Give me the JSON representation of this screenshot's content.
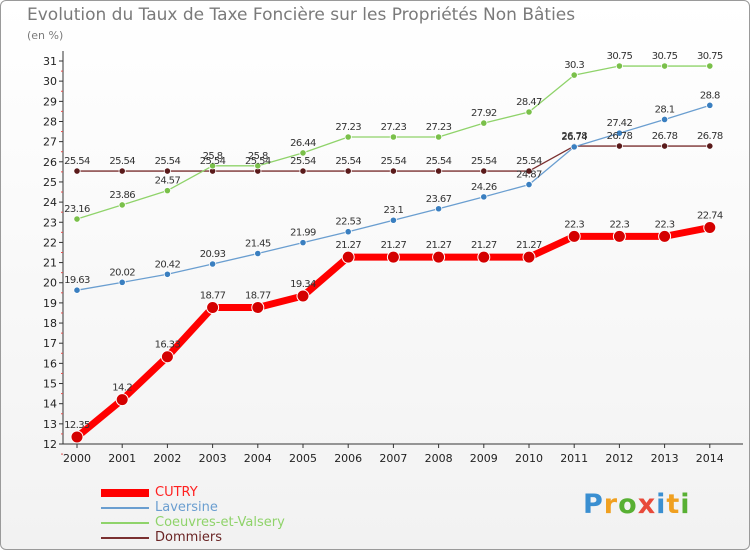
{
  "title": "Evolution du Taux de Taxe Foncière sur les Propriétés Non Bâties",
  "unit_label": "(en %)",
  "logo": {
    "text": "Proxiti",
    "letters": [
      {
        "ch": "P",
        "color": "#3a8fd1"
      },
      {
        "ch": "r",
        "color": "#f0a020"
      },
      {
        "ch": "o",
        "color": "#58b033"
      },
      {
        "ch": "x",
        "color": "#e84a3a"
      },
      {
        "ch": "i",
        "color": "#3a8fd1"
      },
      {
        "ch": "t",
        "color": "#f0a020"
      },
      {
        "ch": "i",
        "color": "#58b033"
      }
    ]
  },
  "chart_data": {
    "type": "line",
    "x": [
      "2000",
      "2001",
      "2002",
      "2003",
      "2004",
      "2005",
      "2006",
      "2007",
      "2008",
      "2009",
      "2010",
      "2011",
      "2012",
      "2013",
      "2014"
    ],
    "ylim": [
      12,
      31
    ],
    "yticks": [
      12,
      13,
      14,
      15,
      16,
      17,
      18,
      19,
      20,
      21,
      22,
      23,
      24,
      25,
      26,
      27,
      28,
      29,
      30,
      31
    ],
    "grid": false,
    "legend_position": "bottom-left",
    "series": [
      {
        "name": "CUTRY",
        "color": "#ff0000",
        "width": 7,
        "marker_r": 6,
        "values": [
          12.35,
          14.2,
          16.33,
          18.77,
          18.77,
          19.34,
          21.27,
          21.27,
          21.27,
          21.27,
          21.27,
          22.3,
          22.3,
          22.3,
          22.74
        ],
        "labels": [
          "12.35",
          "14.2",
          "16.33",
          "18.77",
          "18.77",
          "19.34",
          "21.27",
          "21.27",
          "21.27",
          "21.27",
          "21.27",
          "22.3",
          "22.3",
          "22.3",
          "22.74"
        ]
      },
      {
        "name": "Laversine",
        "color": "#6a9ed0",
        "width": 1.3,
        "marker_r": 3.2,
        "values": [
          19.63,
          20.02,
          20.42,
          20.93,
          21.45,
          21.99,
          22.53,
          23.1,
          23.67,
          24.26,
          24.87,
          26.74,
          27.42,
          28.1,
          28.8
        ],
        "labels": [
          "19.63",
          "20.02",
          "20.42",
          "20.93",
          "21.45",
          "21.99",
          "22.53",
          "23.1",
          "23.67",
          "24.26",
          "24.87",
          "26.74",
          "27.42",
          "28.1",
          "28.8"
        ]
      },
      {
        "name": "Coeuvres-et-Valsery",
        "color": "#8fd36a",
        "width": 1.3,
        "marker_r": 3.2,
        "values": [
          23.16,
          23.86,
          24.57,
          25.8,
          25.8,
          26.44,
          27.23,
          27.23,
          27.23,
          27.92,
          28.47,
          30.3,
          30.75,
          30.75,
          30.75
        ],
        "labels": [
          "23.16",
          "23.86",
          "24.57",
          "25.8",
          "25.8",
          "26.44",
          "27.23",
          "27.23",
          "27.23",
          "27.92",
          "28.47",
          "30.3",
          "30.75",
          "30.75",
          "30.75"
        ]
      },
      {
        "name": "Dommiers",
        "color": "#7a3030",
        "width": 1.3,
        "marker_r": 3.2,
        "values": [
          25.54,
          25.54,
          25.54,
          25.54,
          25.54,
          25.54,
          25.54,
          25.54,
          25.54,
          25.54,
          25.54,
          26.78,
          26.78,
          26.78,
          26.78
        ],
        "labels": [
          "25.54",
          "25.54",
          "25.54",
          "25.54",
          "25.54",
          "25.54",
          "25.54",
          "25.54",
          "25.54",
          "25.54",
          "25.54",
          "26.78",
          "26.78",
          "26.78",
          "26.78"
        ]
      }
    ]
  }
}
